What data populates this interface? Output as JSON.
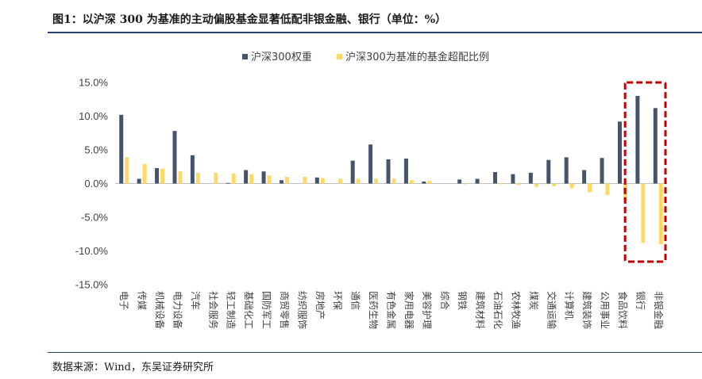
{
  "figure": {
    "title": "图1：以沪深 300 为基准的主动偏股基金显著低配非银金融、银行（单位：%）",
    "source": "数据来源：Wind，东吴证券研究所"
  },
  "colors": {
    "series_1": "#44546a",
    "series_2": "#ffd966",
    "highlight_box": "#c00000",
    "zero_axis": "#bfbfbf",
    "rule": "#2c3e6b"
  },
  "chart_data": {
    "type": "bar",
    "title": "",
    "xlabel": "",
    "ylabel": "",
    "ylim": [
      -15,
      15
    ],
    "yticks": [
      "15.0%",
      "10.0%",
      "5.0%",
      "0.0%",
      "-5.0%",
      "-10.0%",
      "-15.0%"
    ],
    "ytick_values": [
      15,
      10,
      5,
      0,
      -5,
      -10,
      -15
    ],
    "grid": false,
    "legend_position": "top-center",
    "categories": [
      "电子",
      "传媒",
      "机械设备",
      "电力设备",
      "汽车",
      "社会服务",
      "轻工制造",
      "基础化工",
      "国防军工",
      "商贸零售",
      "纺织服饰",
      "房地产",
      "环保",
      "通信",
      "医药生物",
      "有色金属",
      "家用电器",
      "美容护理",
      "综合",
      "钢铁",
      "建筑材料",
      "石油石化",
      "农林牧渔",
      "煤炭",
      "交通运输",
      "计算机",
      "建筑装饰",
      "公用事业",
      "食品饮料",
      "银行",
      "非银金融"
    ],
    "series": [
      {
        "name": "沪深300权重",
        "values": [
          10.2,
          0.7,
          2.3,
          7.8,
          4.2,
          0.0,
          0.1,
          2.0,
          1.8,
          0.5,
          0.0,
          0.9,
          0.0,
          3.4,
          5.8,
          3.6,
          3.7,
          0.3,
          0.0,
          0.6,
          0.7,
          1.7,
          1.4,
          1.6,
          3.5,
          3.9,
          2.0,
          3.8,
          9.2,
          13.0,
          11.2
        ]
      },
      {
        "name": "沪深300为基准的基金超配比例",
        "values": [
          3.9,
          2.9,
          2.2,
          1.8,
          1.6,
          1.6,
          1.5,
          1.4,
          1.2,
          1.0,
          1.0,
          0.8,
          0.7,
          0.7,
          0.7,
          0.7,
          0.5,
          0.4,
          0.0,
          -0.1,
          -0.1,
          -0.1,
          -0.2,
          -0.5,
          -0.4,
          -0.7,
          -1.3,
          -1.7,
          -2.5,
          -8.8,
          -9.0
        ]
      }
    ]
  }
}
